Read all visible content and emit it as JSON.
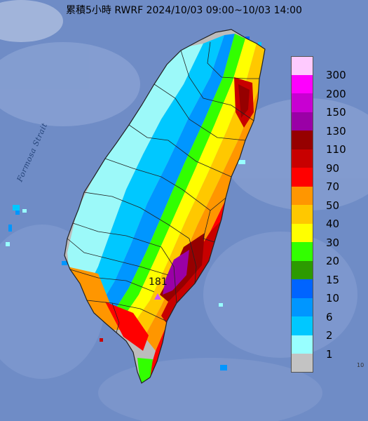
{
  "title": "累積5小時 RWRF 2024/10/03 09:00~10/03 14:00",
  "sea_label": "Formosa Strait",
  "max_label": "181",
  "credit": "10",
  "colors": {
    "sea": "#6f8cc6",
    "land_dry": "#bcbcbc",
    "border": "#222222"
  },
  "legend": {
    "unit_hint": "",
    "levels": [
      {
        "value": "300",
        "color": "#fecafe"
      },
      {
        "value": "200",
        "color": "#fe00fe"
      },
      {
        "value": "150",
        "color": "#c800d2"
      },
      {
        "value": "130",
        "color": "#9a00a6"
      },
      {
        "value": "110",
        "color": "#960000"
      },
      {
        "value": "90",
        "color": "#c80000"
      },
      {
        "value": "70",
        "color": "#ff0000"
      },
      {
        "value": "50",
        "color": "#ff9600"
      },
      {
        "value": "40",
        "color": "#ffc800"
      },
      {
        "value": "30",
        "color": "#ffff00"
      },
      {
        "value": "20",
        "color": "#32ff00"
      },
      {
        "value": "15",
        "color": "#2c9a00"
      },
      {
        "value": "10",
        "color": "#0064ff"
      },
      {
        "value": "6",
        "color": "#0096ff"
      },
      {
        "value": "2",
        "color": "#00c8ff"
      },
      {
        "value": "1",
        "color": "#98ffff"
      },
      {
        "value": "",
        "color": "#c3c3c3"
      }
    ]
  }
}
